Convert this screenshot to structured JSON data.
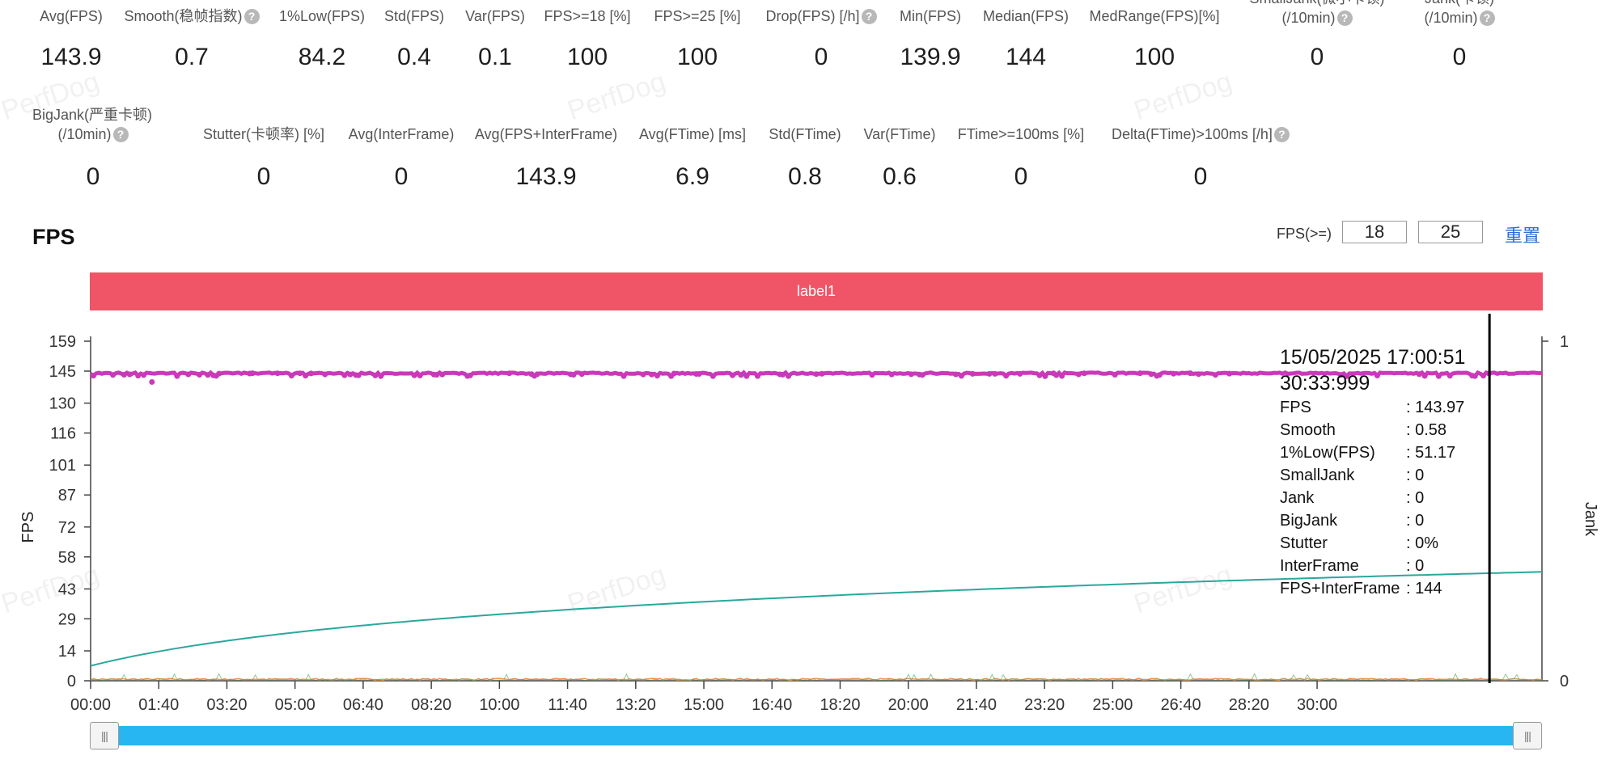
{
  "metrics_row1": [
    {
      "label": "Avg(FPS)",
      "value": "143.9",
      "help": false
    },
    {
      "label": "Smooth(稳帧指数)",
      "value": "0.7",
      "help": true
    },
    {
      "label": "1%Low(FPS)",
      "value": "84.2",
      "help": false
    },
    {
      "label": "Std(FPS)",
      "value": "0.4",
      "help": false
    },
    {
      "label": "Var(FPS)",
      "value": "0.1",
      "help": false
    },
    {
      "label": "FPS>=18 [%]",
      "value": "100",
      "help": false
    },
    {
      "label": "FPS>=25 [%]",
      "value": "100",
      "help": false
    },
    {
      "label": "Drop(FPS) [/h]",
      "value": "0",
      "help": true
    },
    {
      "label": "Min(FPS)",
      "value": "139.9",
      "help": false
    },
    {
      "label": "Median(FPS)",
      "value": "144",
      "help": false
    },
    {
      "label": "MedRange(FPS)[%]",
      "value": "100",
      "help": false
    },
    {
      "label": "SmallJank(微小卡顿)",
      "label2": "(/10min)",
      "value": "0",
      "help": true
    },
    {
      "label": "Jank(卡顿)",
      "label2": "(/10min)",
      "value": "0",
      "help": true
    }
  ],
  "metrics_row2": [
    {
      "label": "BigJank(严重卡顿)",
      "label2": "(/10min)",
      "value": "0",
      "help": true
    },
    {
      "label": "Stutter(卡顿率) [%]",
      "value": "0",
      "help": false
    },
    {
      "label": "Avg(InterFrame)",
      "value": "0",
      "help": false
    },
    {
      "label": "Avg(FPS+InterFrame)",
      "value": "143.9",
      "help": false
    },
    {
      "label": "Avg(FTime) [ms]",
      "value": "6.9",
      "help": false
    },
    {
      "label": "Std(FTime)",
      "value": "0.8",
      "help": false
    },
    {
      "label": "Var(FTime)",
      "value": "0.6",
      "help": false
    },
    {
      "label": "FTime>=100ms [%]",
      "value": "0",
      "help": false
    },
    {
      "label": "Delta(FTime)>100ms [/h]",
      "value": "0",
      "help": true
    }
  ],
  "watermark_text": "PerfDog",
  "section_title": "FPS",
  "threshold": {
    "label": "FPS(>=)",
    "value1": "18",
    "value2": "25"
  },
  "reset_label": "重置",
  "label_bar": "label1",
  "tooltip": {
    "date": "15/05/2025 17:00:51",
    "time": "30:33:999",
    "rows": [
      {
        "k": "FPS",
        "v": ": 143.97"
      },
      {
        "k": "Smooth",
        "v": ": 0.58"
      },
      {
        "k": "1%Low(FPS)",
        "v": ": 51.17"
      },
      {
        "k": "SmallJank",
        "v": ": 0"
      },
      {
        "k": "Jank",
        "v": ": 0"
      },
      {
        "k": "BigJank",
        "v": ": 0"
      },
      {
        "k": "Stutter",
        "v": ": 0%"
      },
      {
        "k": "InterFrame",
        "v": ": 0"
      },
      {
        "k": "FPS+InterFrame",
        "v": ": 144"
      }
    ]
  },
  "colors": {
    "fps": "#c83ab8",
    "smooth": "#2aa89c",
    "low": "#e8944a",
    "low2": "#4aa04a",
    "label_bar": "#ef5566",
    "slider": "#27b6f1",
    "link": "#2f6ed9"
  },
  "chart_data": {
    "type": "line",
    "title": "FPS",
    "ylabel": "FPS",
    "y2label": "Jank",
    "y_ticks": [
      0,
      14,
      29,
      43,
      58,
      72,
      87,
      101,
      116,
      130,
      145,
      159
    ],
    "ylim": [
      0,
      159
    ],
    "y2_ticks": [
      0,
      1
    ],
    "y2lim": [
      0,
      1
    ],
    "x_ticks": [
      "00:00",
      "01:40",
      "03:20",
      "05:00",
      "06:40",
      "08:20",
      "10:00",
      "11:40",
      "13:20",
      "15:00",
      "16:40",
      "18:20",
      "20:00",
      "21:40",
      "23:20",
      "25:00",
      "26:40",
      "28:20",
      "30:00"
    ],
    "x_range_seconds": [
      0,
      2130
    ],
    "cursor_seconds": 2053,
    "series": [
      {
        "name": "FPS",
        "axis": "left",
        "baseline": 144,
        "min": 139.9,
        "max": 144.5
      },
      {
        "name": "Smooth",
        "axis": "left",
        "start": 7,
        "end": 51,
        "curve": "logarithmic"
      },
      {
        "name": "Jank",
        "axis": "left",
        "value": 0.5
      }
    ]
  }
}
